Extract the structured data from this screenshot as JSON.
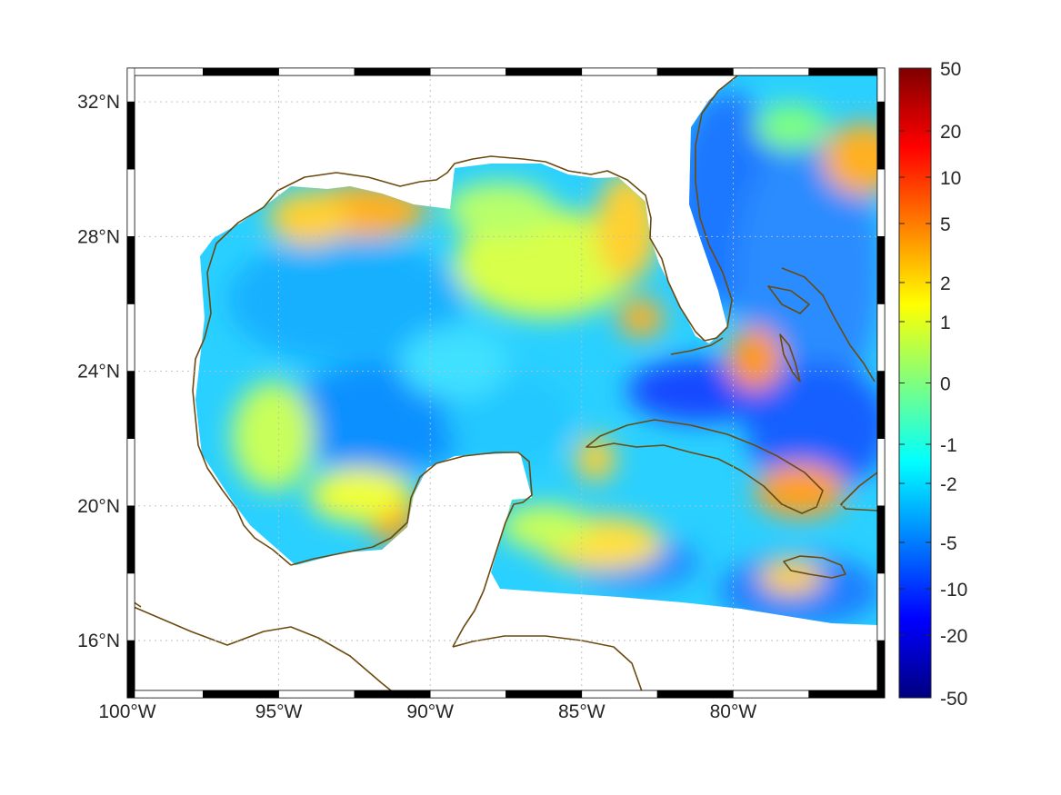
{
  "map": {
    "lon_range": [
      -100,
      -75
    ],
    "lat_range": [
      14.3,
      33
    ],
    "graticule": "dotted",
    "x_ticks": [
      {
        "lon": -100,
        "label": "100°W"
      },
      {
        "lon": -95,
        "label": "95°W"
      },
      {
        "lon": -90,
        "label": "90°W"
      },
      {
        "lon": -85,
        "label": "85°W"
      },
      {
        "lon": -80,
        "label": "80°W"
      }
    ],
    "y_ticks": [
      {
        "lat": 32,
        "label": "32°N"
      },
      {
        "lat": 28,
        "label": "28°N"
      },
      {
        "lat": 24,
        "label": "24°N"
      },
      {
        "lat": 20,
        "label": "20°N"
      },
      {
        "lat": 16,
        "label": "16°N"
      }
    ],
    "coastline_color": "#6b4a10",
    "frame_style": "black-white checkered border"
  },
  "colorbar": {
    "colormap": "jet",
    "orientation": "vertical",
    "position": "right",
    "tick_labels": [
      "50",
      "20",
      "10",
      "5",
      "2",
      "1",
      "0",
      "-1",
      "-2",
      "-5",
      "-10",
      "-20",
      "-50"
    ]
  }
}
